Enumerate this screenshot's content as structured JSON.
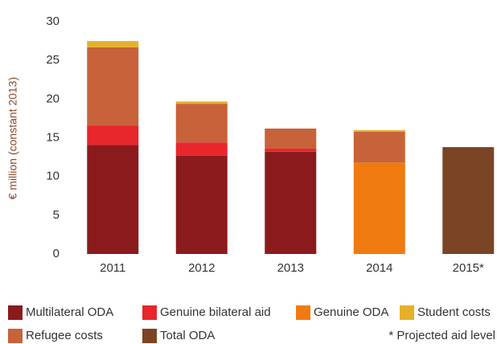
{
  "chart_data": {
    "type": "stacked_bar",
    "y_label": "€ million (constant 2013)",
    "categories": [
      "2011",
      "2012",
      "2013",
      "2014",
      "2015*"
    ],
    "series": [
      {
        "name": "Multilateral ODA",
        "color": "#8b1a1d",
        "values": [
          14.1,
          12.7,
          13.2,
          null,
          null
        ]
      },
      {
        "name": "Genuine bilateral aid",
        "color": "#e8262b",
        "values": [
          2.5,
          1.7,
          0.4,
          null,
          null
        ]
      },
      {
        "name": "Genuine ODA",
        "color": "#f07a10",
        "values": [
          null,
          null,
          null,
          11.8,
          null
        ]
      },
      {
        "name": "Student costs",
        "color": "#e5b12a",
        "values": [
          0.8,
          0.3,
          null,
          0.2,
          null
        ]
      },
      {
        "name": "Refugee costs",
        "color": "#c8623a",
        "values": [
          10.1,
          5.0,
          2.6,
          4.0,
          null
        ]
      },
      {
        "name": "Total ODA",
        "color": "#7b4424",
        "values": [
          null,
          null,
          null,
          null,
          13.8
        ]
      }
    ],
    "note": "* Projected aid level",
    "ylim": [
      0,
      30
    ],
    "yticks": [
      0,
      5,
      10,
      15,
      20,
      25,
      30
    ],
    "grid": false
  }
}
